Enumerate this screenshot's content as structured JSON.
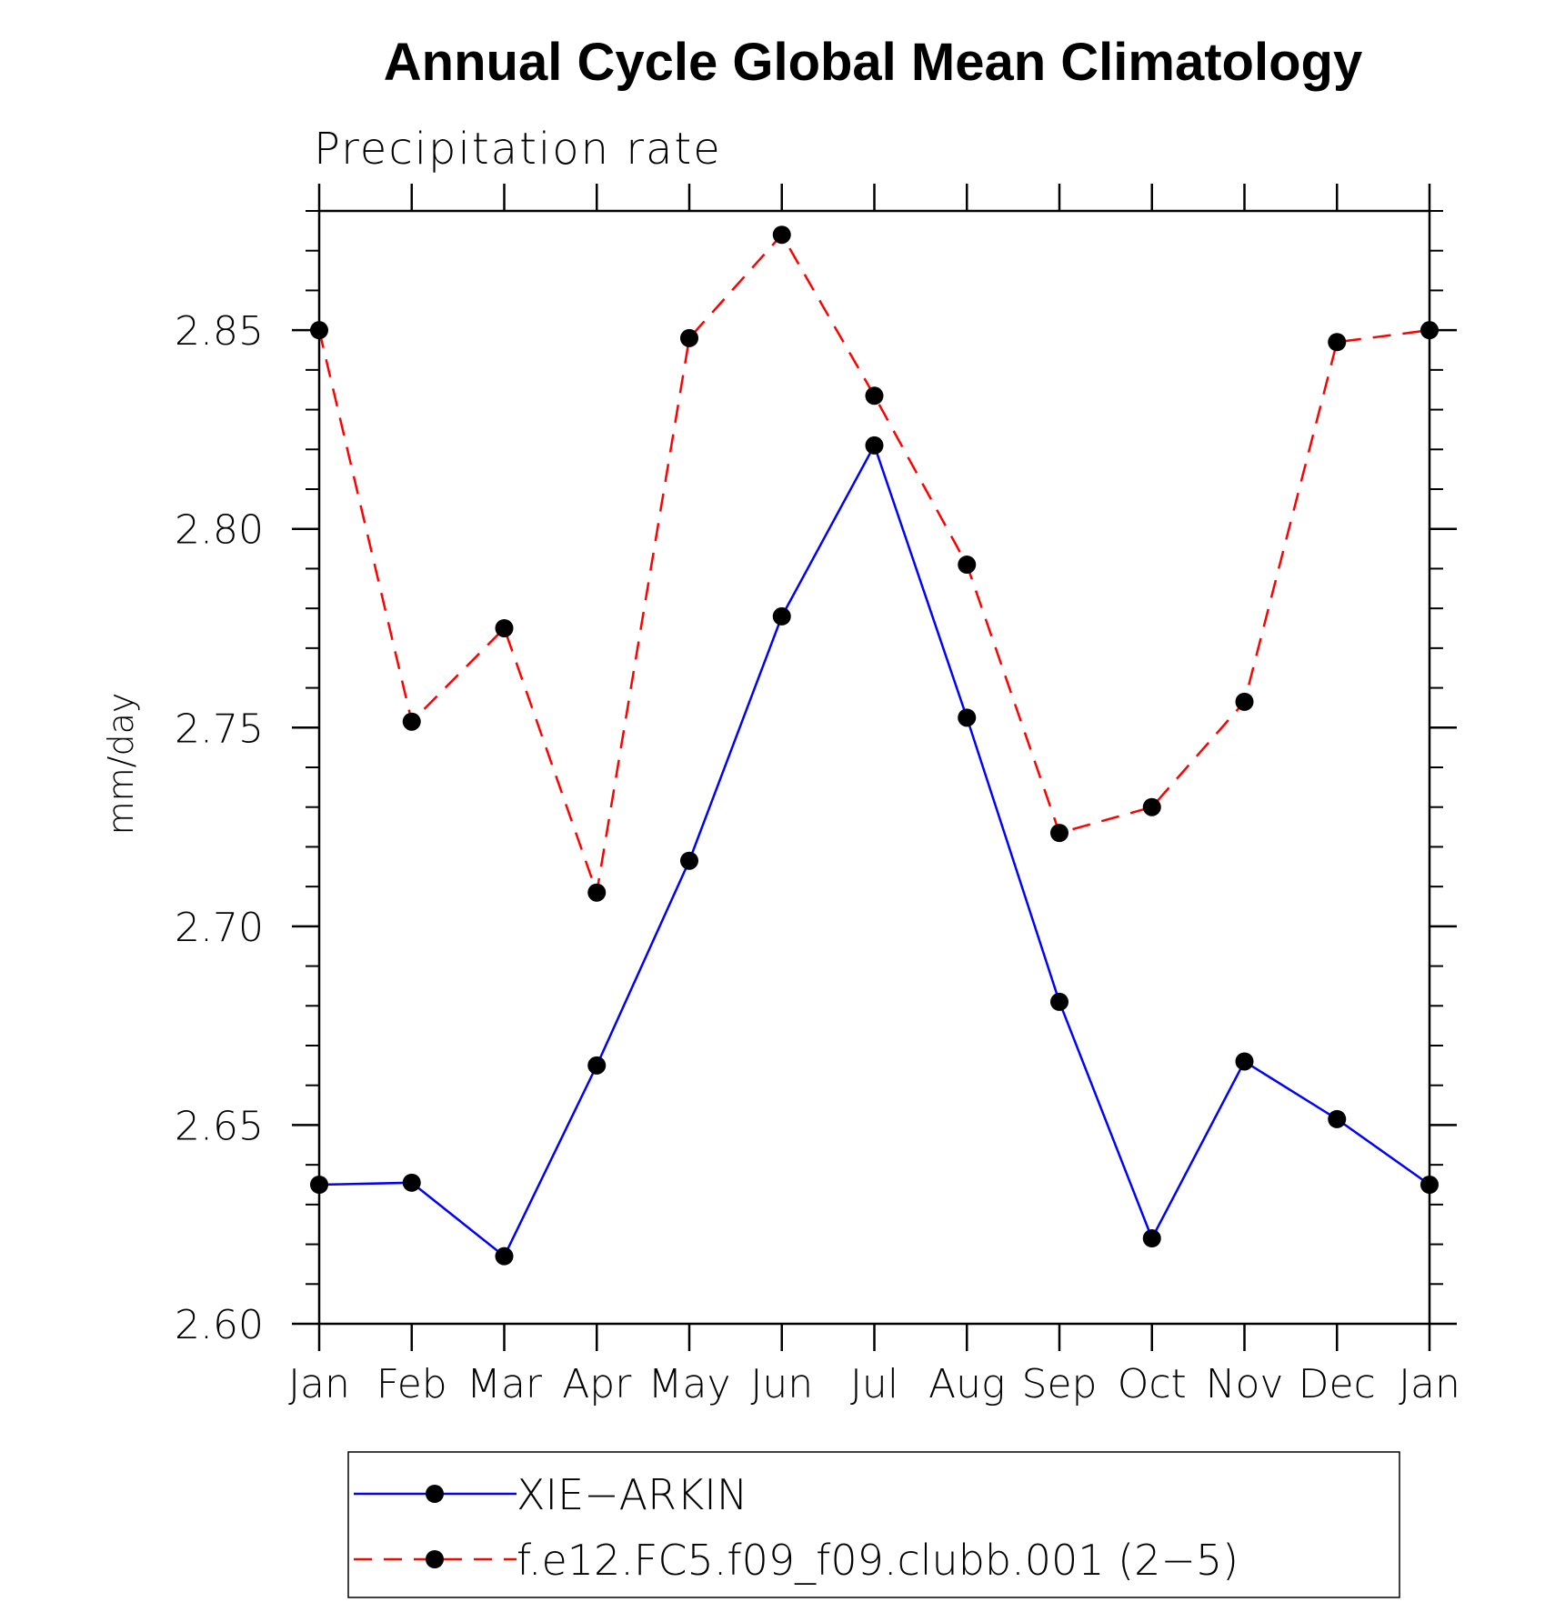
{
  "chart_data": {
    "type": "line",
    "title": "Annual Cycle Global Mean Climatology",
    "subtitle": "Precipitation rate",
    "ylabel": "mm/day",
    "xlabel": "",
    "categories": [
      "Jan",
      "Feb",
      "Mar",
      "Apr",
      "May",
      "Jun",
      "Jul",
      "Aug",
      "Sep",
      "Oct",
      "Nov",
      "Dec",
      "Jan"
    ],
    "ylim": [
      2.6,
      2.88
    ],
    "yticks": [
      "2.60",
      "2.65",
      "2.70",
      "2.75",
      "2.80",
      "2.85"
    ],
    "ytick_values": [
      2.6,
      2.65,
      2.7,
      2.75,
      2.8,
      2.85
    ],
    "series": [
      {
        "name": "XIE−ARKIN",
        "color": "#0000ff",
        "style": "solid",
        "values": [
          2.635,
          2.6355,
          2.617,
          2.665,
          2.7165,
          2.778,
          2.821,
          2.7525,
          2.681,
          2.6215,
          2.666,
          2.6515,
          2.635
        ]
      },
      {
        "name": "f.e12.FC5.f09_f09.clubb.001 (2−5)",
        "color": "#ff0000",
        "style": "dashed",
        "values": [
          2.85,
          2.7515,
          2.775,
          2.7085,
          2.848,
          2.874,
          2.8335,
          2.791,
          2.7235,
          2.73,
          2.7565,
          2.847,
          2.85
        ]
      }
    ],
    "grid": false,
    "legend": "bottom"
  }
}
